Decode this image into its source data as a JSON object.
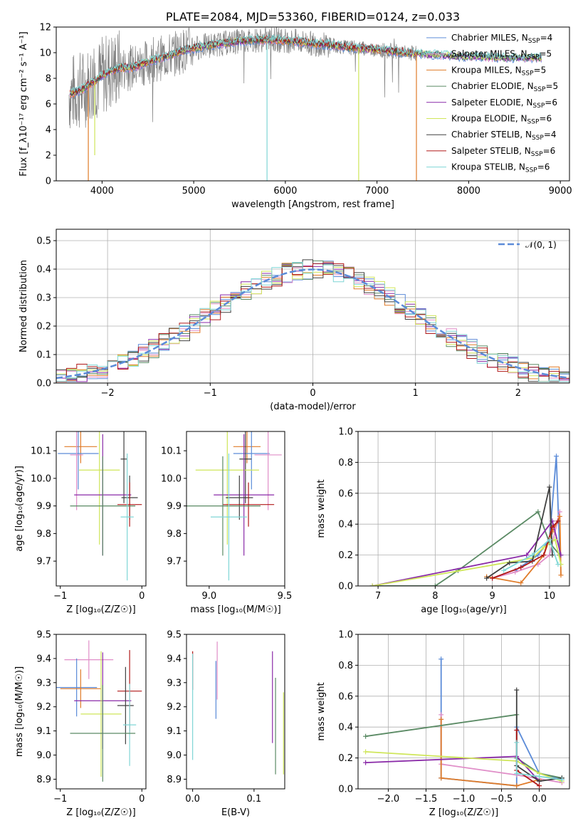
{
  "colors": {
    "chabrier_miles": "#5b8bd8",
    "salpeter_miles": "#e08ec8",
    "kroupa_miles": "#e07b28",
    "chabrier_elodie": "#5a8a64",
    "salpeter_elodie": "#8a2aa8",
    "kroupa_elodie": "#cfe65a",
    "chabrier_stelib": "#404040",
    "salpeter_stelib": "#b01818",
    "kroupa_stelib": "#7fd6d6",
    "data": "#808080",
    "gauss": "#5b8bd8"
  },
  "chart_data": [
    {
      "id": "spectrum",
      "type": "line",
      "title": "PLATE=2084, MJD=53360, FIBERID=0124, z=0.033",
      "xlabel": "wavelength [Angstrom, rest frame]",
      "ylabel": "Flux [f_λ10⁻¹⁷ erg cm⁻² s⁻¹ A⁻¹]",
      "xlim": [
        3500,
        9100
      ],
      "ylim": [
        0,
        12
      ],
      "xticks": [
        "4000",
        "5000",
        "6000",
        "7000",
        "8000",
        "9000"
      ],
      "yticks": [
        "0",
        "2",
        "4",
        "6",
        "8",
        "10",
        "12"
      ],
      "grid": false,
      "legend_position": "top-right",
      "legend": [
        {
          "pre": "Chabrier MILES, N",
          "sub": "SSP",
          "post": "=4",
          "color": "chabrier_miles"
        },
        {
          "pre": "Salpeter MILES, N",
          "sub": "SSP",
          "post": "=5",
          "color": "salpeter_miles"
        },
        {
          "pre": "Kroupa MILES, N",
          "sub": "SSP",
          "post": "=5",
          "color": "kroupa_miles"
        },
        {
          "pre": "Chabrier ELODIE, N",
          "sub": "SSP",
          "post": "=5",
          "color": "chabrier_elodie"
        },
        {
          "pre": "Salpeter ELODIE, N",
          "sub": "SSP",
          "post": "=6",
          "color": "salpeter_elodie"
        },
        {
          "pre": "Kroupa ELODIE, N",
          "sub": "SSP",
          "post": "=6",
          "color": "kroupa_elodie"
        },
        {
          "pre": "Chabrier STELIB, N",
          "sub": "SSP",
          "post": "=4",
          "color": "chabrier_stelib"
        },
        {
          "pre": "Salpeter STELIB, N",
          "sub": "SSP",
          "post": "=6",
          "color": "salpeter_stelib"
        },
        {
          "pre": "Kroupa STELIB, N",
          "sub": "SSP",
          "post": "=6",
          "color": "kroupa_stelib"
        }
      ],
      "model_curve": {
        "x": [
          3650,
          3700,
          3800,
          3900,
          4000,
          4100,
          4200,
          4300,
          4400,
          4500,
          4700,
          4900,
          5100,
          5300,
          5500,
          5700,
          5900,
          6100,
          6300,
          6500,
          6700,
          6900,
          7100,
          7300,
          7500,
          7700,
          7900,
          8100,
          8300,
          8500,
          8700,
          8800
        ],
        "y": [
          6.8,
          6.9,
          7.2,
          7.7,
          8.2,
          8.6,
          8.8,
          8.8,
          9.0,
          9.3,
          9.7,
          10.2,
          10.5,
          10.7,
          10.9,
          11.0,
          11.0,
          10.9,
          10.7,
          10.6,
          10.4,
          10.3,
          10.2,
          10.0,
          9.9,
          9.8,
          9.7,
          9.7,
          9.6,
          9.6,
          9.6,
          9.6
        ]
      },
      "data_curve": {
        "x_range": [
          3640,
          7430
        ]
      },
      "dropouts": [
        {
          "x": 5800,
          "y_min": 0.0,
          "color": "kroupa_stelib"
        },
        {
          "x": 6800,
          "y_min": 0.0,
          "color": "kroupa_elodie"
        },
        {
          "x": 7430,
          "y_min": 0.0,
          "color": "kroupa_miles"
        },
        {
          "x": 3850,
          "y_min": 0.0,
          "color": "kroupa_miles"
        },
        {
          "x": 3920,
          "y_min": 2.0,
          "color": "kroupa_elodie"
        }
      ]
    },
    {
      "id": "residuals",
      "type": "line",
      "xlabel": "(data-model)/error",
      "ylabel": "Normed distribution",
      "xlim": [
        -2.5,
        2.5
      ],
      "ylim": [
        0,
        0.54
      ],
      "xticks": [
        "−2",
        "−1",
        "0",
        "1",
        "2"
      ],
      "yticks": [
        "0.0",
        "0.1",
        "0.2",
        "0.3",
        "0.4",
        "0.5"
      ],
      "grid": true,
      "legend_position": "top-right",
      "legend": [
        {
          "label": "𝒩(0, 1)",
          "color": "gauss"
        }
      ],
      "bin_width": 0.1
    },
    {
      "id": "age_vs_Z",
      "type": "scatter",
      "xlabel": "Z [log₁₀(Z/Z☉)]",
      "ylabel": "age  [log₁₀(age/yr)]",
      "xlim": [
        -1.05,
        0.05
      ],
      "ylim": [
        9.61,
        10.17
      ],
      "xticks": [
        "−1",
        "0"
      ],
      "yticks": [
        "9.7",
        "9.8",
        "9.9",
        "10.0",
        "10.1"
      ],
      "grid": false,
      "points": [
        {
          "x": -0.75,
          "y": 10.115,
          "xerr": 0.2,
          "yerr": 0.06,
          "color": "kroupa_miles"
        },
        {
          "x": -0.78,
          "y": 10.09,
          "xerr": 0.25,
          "yerr": 0.13,
          "color": "chabrier_miles"
        },
        {
          "x": -0.8,
          "y": 10.085,
          "xerr": 0.08,
          "yerr": 0.2,
          "color": "salpeter_miles"
        },
        {
          "x": -0.22,
          "y": 10.07,
          "xerr": 0.04,
          "yerr": 0.16,
          "color": "chabrier_stelib"
        },
        {
          "x": -0.52,
          "y": 10.03,
          "xerr": 0.25,
          "yerr": 0.27,
          "color": "kroupa_elodie"
        },
        {
          "x": -0.48,
          "y": 9.94,
          "xerr": 0.35,
          "yerr": 0.22,
          "color": "salpeter_elodie"
        },
        {
          "x": -0.15,
          "y": 9.93,
          "xerr": 0.1,
          "yerr": 0.08,
          "color": "chabrier_stelib"
        },
        {
          "x": -0.15,
          "y": 9.905,
          "xerr": 0.15,
          "yerr": 0.08,
          "color": "salpeter_stelib"
        },
        {
          "x": -0.48,
          "y": 9.9,
          "xerr": 0.4,
          "yerr": 0.18,
          "color": "chabrier_elodie"
        },
        {
          "x": -0.18,
          "y": 9.86,
          "xerr": 0.08,
          "yerr": 0.23,
          "color": "kroupa_stelib"
        }
      ]
    },
    {
      "id": "age_vs_mass",
      "type": "scatter",
      "xlabel": "mass [log₁₀(M/M☉)]",
      "ylabel": "",
      "xlim": [
        8.85,
        9.5
      ],
      "ylim": [
        9.61,
        10.17
      ],
      "xticks": [
        "9.0",
        "9.5"
      ],
      "yticks": [
        "9.7",
        "9.8",
        "9.9",
        "10.0",
        "10.1"
      ],
      "grid": false,
      "points": [
        {
          "x": 9.25,
          "y": 10.115,
          "xerr": 0.09,
          "yerr": 0.06,
          "color": "kroupa_miles"
        },
        {
          "x": 9.28,
          "y": 10.09,
          "xerr": 0.12,
          "yerr": 0.13,
          "color": "chabrier_miles"
        },
        {
          "x": 9.39,
          "y": 10.085,
          "xerr": 0.09,
          "yerr": 0.2,
          "color": "salpeter_miles"
        },
        {
          "x": 9.24,
          "y": 10.07,
          "xerr": 0.04,
          "yerr": 0.16,
          "color": "chabrier_stelib"
        },
        {
          "x": 9.12,
          "y": 10.03,
          "xerr": 0.21,
          "yerr": 0.27,
          "color": "kroupa_elodie"
        },
        {
          "x": 9.23,
          "y": 9.94,
          "xerr": 0.2,
          "yerr": 0.22,
          "color": "salpeter_elodie"
        },
        {
          "x": 9.2,
          "y": 9.93,
          "xerr": 0.09,
          "yerr": 0.08,
          "color": "chabrier_stelib"
        },
        {
          "x": 9.26,
          "y": 9.905,
          "xerr": 0.17,
          "yerr": 0.08,
          "color": "salpeter_stelib"
        },
        {
          "x": 9.09,
          "y": 9.9,
          "xerr": 0.25,
          "yerr": 0.18,
          "color": "chabrier_elodie"
        },
        {
          "x": 9.13,
          "y": 9.86,
          "xerr": 0.12,
          "yerr": 0.23,
          "color": "kroupa_stelib"
        }
      ]
    },
    {
      "id": "weight_vs_age",
      "type": "line",
      "xlabel": "age  [log₁₀(age/yr)]",
      "ylabel": "mass weight",
      "xlim": [
        6.65,
        10.35
      ],
      "ylim": [
        0,
        1.0
      ],
      "xticks": [
        "7",
        "8",
        "9",
        "10"
      ],
      "yticks": [
        "0.0",
        "0.2",
        "0.4",
        "0.6",
        "0.8",
        "1.0"
      ],
      "grid": true,
      "series": [
        {
          "color": "chabrier_miles",
          "x": [
            9.4,
            9.8,
            10.0,
            10.12,
            10.18
          ],
          "y": [
            0.1,
            0.2,
            0.3,
            0.84,
            0.2
          ]
        },
        {
          "color": "salpeter_miles",
          "x": [
            9.0,
            9.4,
            9.8,
            10.0,
            10.18
          ],
          "y": [
            0.05,
            0.09,
            0.14,
            0.2,
            0.48
          ]
        },
        {
          "color": "kroupa_miles",
          "x": [
            8.9,
            9.5,
            9.9,
            10.05,
            10.18,
            10.2
          ],
          "y": [
            0.06,
            0.02,
            0.2,
            0.35,
            0.45,
            0.07
          ]
        },
        {
          "color": "chabrier_elodie",
          "x": [
            6.9,
            8.0,
            8.4,
            9.8,
            10.0,
            10.18
          ],
          "y": [
            0.0,
            0.0,
            0.1,
            0.48,
            0.28,
            0.2
          ]
        },
        {
          "color": "salpeter_elodie",
          "x": [
            6.9,
            9.6,
            10.05,
            10.2
          ],
          "y": [
            0.0,
            0.2,
            0.42,
            0.2
          ]
        },
        {
          "color": "kroupa_elodie",
          "x": [
            6.9,
            9.7,
            9.9,
            10.1,
            10.2
          ],
          "y": [
            0.0,
            0.18,
            0.25,
            0.3,
            0.14
          ]
        },
        {
          "color": "chabrier_stelib",
          "x": [
            8.9,
            9.3,
            9.7,
            10.0,
            10.05
          ],
          "y": [
            0.05,
            0.15,
            0.16,
            0.64,
            0.2
          ]
        },
        {
          "color": "salpeter_stelib",
          "x": [
            9.0,
            9.5,
            9.9,
            10.05,
            10.15
          ],
          "y": [
            0.05,
            0.12,
            0.2,
            0.38,
            0.42
          ]
        },
        {
          "color": "kroupa_stelib",
          "x": [
            9.2,
            9.7,
            10.0,
            10.15
          ],
          "y": [
            0.1,
            0.2,
            0.3,
            0.14
          ]
        }
      ]
    },
    {
      "id": "mass_vs_Z",
      "type": "scatter",
      "xlabel": "Z [log₁₀(Z/Z☉)]",
      "ylabel": "mass [log₁₀(M/M☉)]",
      "xlim": [
        -1.05,
        0.05
      ],
      "ylim": [
        8.86,
        9.5
      ],
      "xticks": [
        "−1",
        "0"
      ],
      "yticks": [
        "8.9",
        "9.0",
        "9.1",
        "9.2",
        "9.3",
        "9.4",
        "9.5"
      ],
      "grid": false,
      "points": [
        {
          "x": -0.65,
          "y": 9.395,
          "xerr": 0.3,
          "yerr": 0.08,
          "color": "salpeter_miles"
        },
        {
          "x": -0.8,
          "y": 9.28,
          "xerr": 0.25,
          "yerr": 0.12,
          "color": "chabrier_miles"
        },
        {
          "x": -0.75,
          "y": 9.275,
          "xerr": 0.25,
          "yerr": 0.08,
          "color": "kroupa_miles"
        },
        {
          "x": -0.15,
          "y": 9.265,
          "xerr": 0.15,
          "yerr": 0.17,
          "color": "salpeter_stelib"
        },
        {
          "x": -0.48,
          "y": 9.225,
          "xerr": 0.35,
          "yerr": 0.2,
          "color": "salpeter_elodie"
        },
        {
          "x": -0.2,
          "y": 9.205,
          "xerr": 0.1,
          "yerr": 0.16,
          "color": "chabrier_stelib"
        },
        {
          "x": -0.5,
          "y": 9.17,
          "xerr": 0.25,
          "yerr": 0.26,
          "color": "kroupa_elodie"
        },
        {
          "x": -0.15,
          "y": 9.125,
          "xerr": 0.08,
          "yerr": 0.17,
          "color": "kroupa_stelib"
        },
        {
          "x": -0.48,
          "y": 9.09,
          "xerr": 0.4,
          "yerr": 0.2,
          "color": "chabrier_elodie"
        }
      ]
    },
    {
      "id": "mass_vs_EBV",
      "type": "scatter",
      "xlabel": "E(B-V)",
      "ylabel": "",
      "xlim": [
        -0.01,
        0.15
      ],
      "ylim": [
        8.86,
        9.5
      ],
      "xticks": [
        "0.0",
        "0.1"
      ],
      "yticks": [
        "8.9",
        "9.0",
        "9.1",
        "9.2",
        "9.3",
        "9.4",
        "9.5"
      ],
      "grid": false,
      "points": [
        {
          "x": 0.0,
          "y": 9.35,
          "xerr": 0,
          "yerr": 0.08,
          "color": "salpeter_stelib"
        },
        {
          "x": 0.0,
          "y": 9.2,
          "xerr": 0,
          "yerr": 0.22,
          "color": "kroupa_stelib"
        },
        {
          "x": 0.038,
          "y": 9.27,
          "xerr": 0,
          "yerr": 0.12,
          "color": "chabrier_miles"
        },
        {
          "x": 0.04,
          "y": 9.35,
          "xerr": 0,
          "yerr": 0.12,
          "color": "salpeter_miles"
        },
        {
          "x": 0.13,
          "y": 9.24,
          "xerr": 0,
          "yerr": 0.19,
          "color": "salpeter_elodie"
        },
        {
          "x": 0.135,
          "y": 9.12,
          "xerr": 0,
          "yerr": 0.2,
          "color": "chabrier_elodie"
        },
        {
          "x": 0.148,
          "y": 9.09,
          "xerr": 0,
          "yerr": 0.17,
          "color": "kroupa_elodie"
        }
      ]
    },
    {
      "id": "weight_vs_Z",
      "type": "line",
      "xlabel": "Z [log₁₀(Z/Z☉)]",
      "ylabel": "mass weight",
      "xlim": [
        -2.4,
        0.4
      ],
      "ylim": [
        0,
        1.0
      ],
      "xticks": [
        "−2.0",
        "−1.5",
        "−1.0",
        "−0.5",
        "0.0"
      ],
      "yticks": [
        "0.0",
        "0.2",
        "0.4",
        "0.6",
        "0.8",
        "1.0"
      ],
      "grid": true,
      "series": [
        {
          "color": "chabrier_miles",
          "x": [
            -1.3,
            -1.3,
            -0.3,
            -0.3,
            0.0,
            0.3
          ],
          "y": [
            0.84,
            0.07,
            0.02,
            0.4,
            0.1,
            0.06
          ]
        },
        {
          "color": "salpeter_miles",
          "x": [
            -1.3,
            -1.3,
            -0.3,
            0.3
          ],
          "y": [
            0.48,
            0.16,
            0.09,
            0.04
          ]
        },
        {
          "color": "kroupa_miles",
          "x": [
            -1.3,
            -1.3,
            -0.3,
            0.0
          ],
          "y": [
            0.45,
            0.07,
            0.02,
            0.06
          ]
        },
        {
          "color": "chabrier_elodie",
          "x": [
            -2.3,
            -0.3,
            -0.3,
            0.0,
            0.3
          ],
          "y": [
            0.34,
            0.48,
            0.2,
            0.1,
            0.07
          ]
        },
        {
          "color": "salpeter_elodie",
          "x": [
            -2.3,
            -0.3,
            0.0
          ],
          "y": [
            0.17,
            0.21,
            0.05
          ]
        },
        {
          "color": "kroupa_elodie",
          "x": [
            -2.3,
            -0.3,
            0.0,
            0.3
          ],
          "y": [
            0.24,
            0.18,
            0.1,
            0.05
          ]
        },
        {
          "color": "chabrier_stelib",
          "x": [
            -0.3,
            -0.3,
            0.0,
            0.3
          ],
          "y": [
            0.64,
            0.15,
            0.05,
            0.07
          ]
        },
        {
          "color": "salpeter_stelib",
          "x": [
            -0.3,
            -0.3,
            0.0
          ],
          "y": [
            0.38,
            0.12,
            0.02
          ]
        },
        {
          "color": "kroupa_stelib",
          "x": [
            -0.3,
            -0.3,
            0.0,
            0.3
          ],
          "y": [
            0.3,
            0.1,
            0.08,
            0.06
          ]
        }
      ]
    }
  ]
}
